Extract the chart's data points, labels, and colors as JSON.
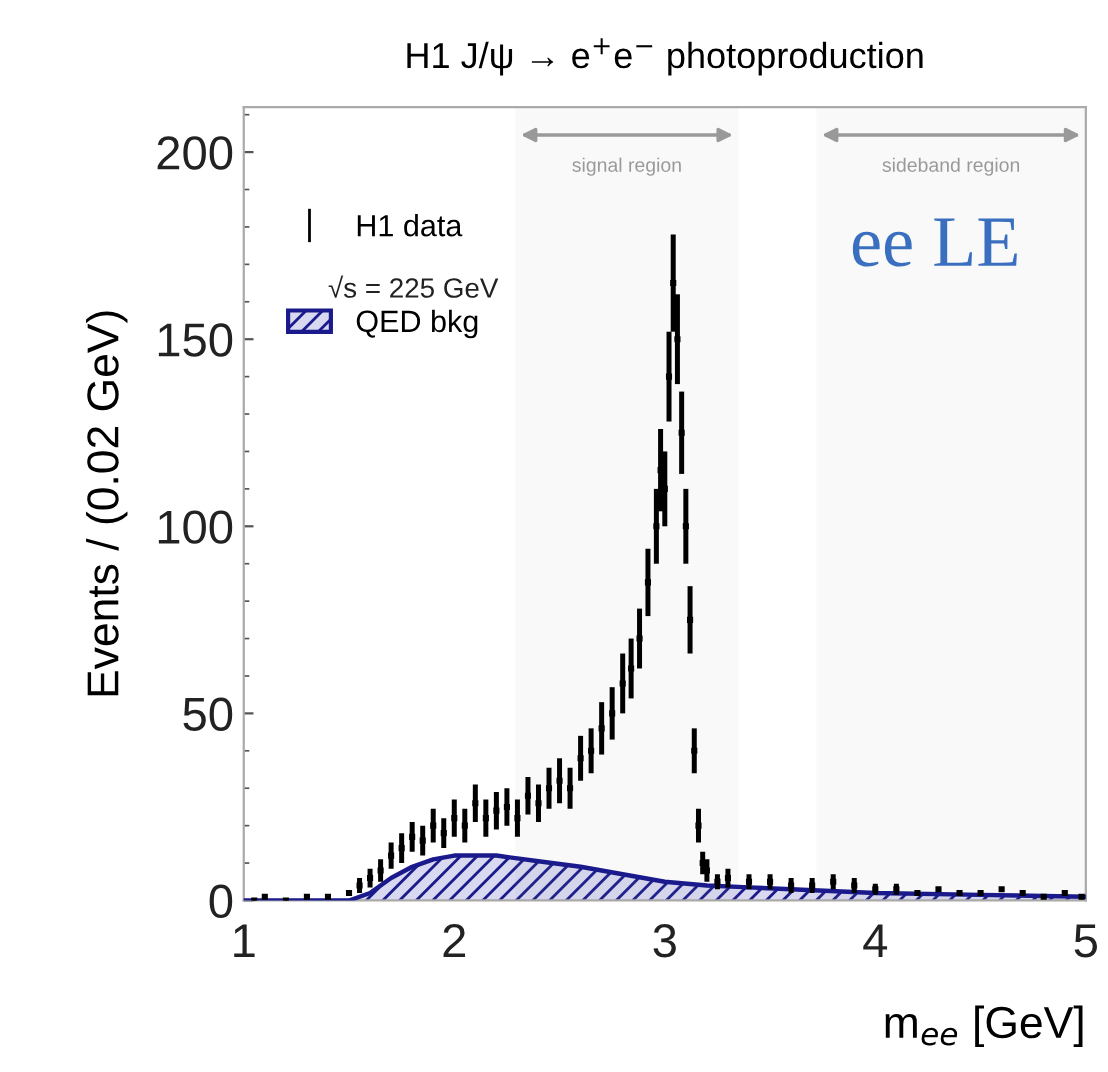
{
  "chart_data": {
    "type": "scatter",
    "title": "H1 J/ψ → e$^{+}$e$^{−}$ photoproduction",
    "xlabel": "m$_{ee}$ [GeV]",
    "ylabel": "Events / (0.02 GeV)",
    "xlim": [
      1,
      5
    ],
    "xticks": [
      1,
      2,
      3,
      4,
      5
    ],
    "ylim": [
      0,
      212
    ],
    "yticks": [
      0,
      50,
      100,
      150,
      200
    ],
    "legend": "top left",
    "grid": false,
    "annotations": [
      "√s = 225 GeV",
      "ee LE"
    ],
    "bands": [
      {
        "axis": "x",
        "from": 2.29,
        "to": 3.35,
        "label": "signal region",
        "color": "#999999"
      },
      {
        "axis": "x",
        "from": 3.72,
        "to": 5.0,
        "label": "sideband region",
        "color": "#999999"
      }
    ],
    "series": [
      {
        "name": "QED bkg",
        "type": "area",
        "color": "#1a1a8c",
        "x": [
          1.0,
          1.5,
          1.6,
          1.7,
          1.8,
          1.9,
          2.0,
          2.2,
          2.4,
          2.6,
          2.8,
          3.0,
          3.2,
          3.4,
          3.6,
          4.0,
          4.5,
          5.0
        ],
        "values": [
          0,
          0,
          2,
          6,
          9,
          11,
          12,
          12,
          10.5,
          9,
          7,
          5,
          4,
          3.5,
          3,
          2,
          1.5,
          1
        ]
      },
      {
        "name": "H1 data",
        "marker": "square",
        "color": "#000000",
        "x": [
          1.05,
          1.1,
          1.2,
          1.3,
          1.4,
          1.5,
          1.55,
          1.6,
          1.65,
          1.7,
          1.75,
          1.8,
          1.85,
          1.9,
          1.95,
          2.0,
          2.05,
          2.1,
          2.15,
          2.2,
          2.25,
          2.3,
          2.35,
          2.4,
          2.45,
          2.5,
          2.55,
          2.6,
          2.65,
          2.7,
          2.75,
          2.8,
          2.84,
          2.88,
          2.92,
          2.96,
          2.98,
          3.0,
          3.02,
          3.04,
          3.06,
          3.08,
          3.1,
          3.12,
          3.14,
          3.16,
          3.18,
          3.2,
          3.25,
          3.3,
          3.4,
          3.5,
          3.6,
          3.7,
          3.8,
          3.9,
          4.0,
          4.1,
          4.2,
          4.3,
          4.4,
          4.5,
          4.6,
          4.7,
          4.8,
          4.9,
          4.98
        ],
        "values": [
          0,
          1,
          0,
          1,
          1,
          2,
          4,
          6,
          8,
          12,
          14,
          17,
          16,
          20,
          18,
          22,
          20,
          26,
          22,
          24,
          25,
          22,
          28,
          26,
          30,
          32,
          30,
          38,
          40,
          46,
          50,
          58,
          62,
          70,
          85,
          100,
          115,
          110,
          140,
          165,
          150,
          125,
          100,
          75,
          40,
          20,
          10,
          8,
          5,
          6,
          5,
          5,
          4,
          4,
          5,
          4,
          3,
          3,
          2,
          3,
          2,
          2,
          3,
          2,
          1,
          2,
          1
        ],
        "errors": [
          null,
          null,
          null,
          null,
          null,
          null,
          2,
          2.5,
          3,
          3.5,
          4,
          4,
          4,
          4.5,
          4,
          5,
          4.5,
          5,
          5,
          5,
          5,
          5,
          5,
          5,
          5.5,
          6,
          5.5,
          6,
          6,
          7,
          7,
          8,
          8,
          8,
          9,
          10,
          11,
          10,
          12,
          13,
          12,
          11,
          10,
          9,
          6,
          4.5,
          3,
          3,
          2,
          2.5,
          2,
          2,
          2,
          2,
          2,
          2,
          1.5,
          1.5,
          null,
          null,
          null,
          null,
          null,
          null,
          null,
          null,
          null
        ]
      }
    ]
  }
}
